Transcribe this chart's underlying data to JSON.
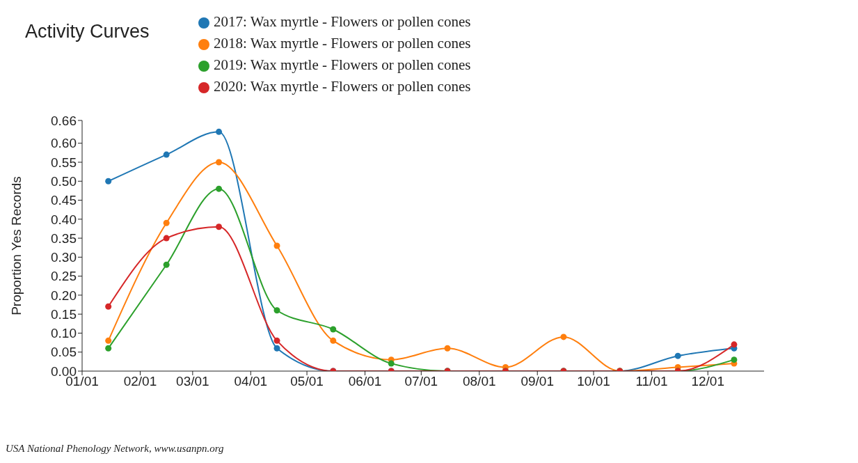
{
  "chart_data": {
    "type": "line",
    "title": "Activity Curves",
    "ylabel": "Proportion Yes Records",
    "x": [
      "--01-15",
      "--02-15",
      "--03-15",
      "--04-15",
      "--05-15",
      "--06-15",
      "--07-15",
      "--08-15",
      "--09-15",
      "--10-15",
      "--11-15",
      "--12-15"
    ],
    "series": [
      {
        "name": "2017: Wax myrtle - Flowers or pollen cones",
        "color": "#1f77b4",
        "values": [
          0.5,
          0.57,
          0.63,
          0.06,
          0,
          0,
          0,
          0,
          0,
          0,
          0.04,
          0.06
        ]
      },
      {
        "name": "2018: Wax myrtle - Flowers or pollen cones",
        "color": "#ff7f0e",
        "values": [
          0.08,
          0.39,
          0.55,
          0.33,
          0.08,
          0.03,
          0.06,
          0.01,
          0.09,
          0,
          0.01,
          0.02
        ]
      },
      {
        "name": "2019: Wax myrtle - Flowers or pollen cones",
        "color": "#2ca02c",
        "values": [
          0.06,
          0.28,
          0.48,
          0.16,
          0.11,
          0.02,
          0,
          0,
          0,
          0,
          0,
          0.03
        ]
      },
      {
        "name": "2020: Wax myrtle - Flowers or pollen cones",
        "color": "#d62728",
        "values": [
          0.17,
          0.35,
          0.38,
          0.08,
          0,
          0,
          0,
          0,
          0,
          0,
          0,
          0.07
        ]
      }
    ],
    "xlim": [
      "--01-01",
      "--12-31"
    ],
    "xticks": [
      {
        "value": "--01-01",
        "label": "01/01"
      },
      {
        "value": "--02-01",
        "label": "02/01"
      },
      {
        "value": "--03-01",
        "label": "03/01"
      },
      {
        "value": "--04-01",
        "label": "04/01"
      },
      {
        "value": "--05-01",
        "label": "05/01"
      },
      {
        "value": "--06-01",
        "label": "06/01"
      },
      {
        "value": "--07-01",
        "label": "07/01"
      },
      {
        "value": "--08-01",
        "label": "08/01"
      },
      {
        "value": "--09-01",
        "label": "09/01"
      },
      {
        "value": "--10-01",
        "label": "10/01"
      },
      {
        "value": "--11-01",
        "label": "11/01"
      },
      {
        "value": "--12-01",
        "label": "12/01"
      }
    ],
    "ylim": [
      0,
      0.66
    ],
    "yticks": [
      {
        "value": 0,
        "label": "0.00"
      },
      {
        "value": 0.05,
        "label": "0.05"
      },
      {
        "value": 0.1,
        "label": "0.10"
      },
      {
        "value": 0.15,
        "label": "0.15"
      },
      {
        "value": 0.2,
        "label": "0.20"
      },
      {
        "value": 0.25,
        "label": "0.25"
      },
      {
        "value": 0.3,
        "label": "0.30"
      },
      {
        "value": 0.35,
        "label": "0.35"
      },
      {
        "value": 0.4,
        "label": "0.40"
      },
      {
        "value": 0.45,
        "label": "0.45"
      },
      {
        "value": 0.5,
        "label": "0.50"
      },
      {
        "value": 0.55,
        "label": "0.55"
      },
      {
        "value": 0.6,
        "label": "0.60"
      },
      {
        "value": 0.66,
        "label": "0.66"
      }
    ],
    "grid": false,
    "legend": "top",
    "marker": "circle",
    "line_style": "solid",
    "annotations": [
      "USA National Phenology Network, www.usanpn.org"
    ]
  }
}
